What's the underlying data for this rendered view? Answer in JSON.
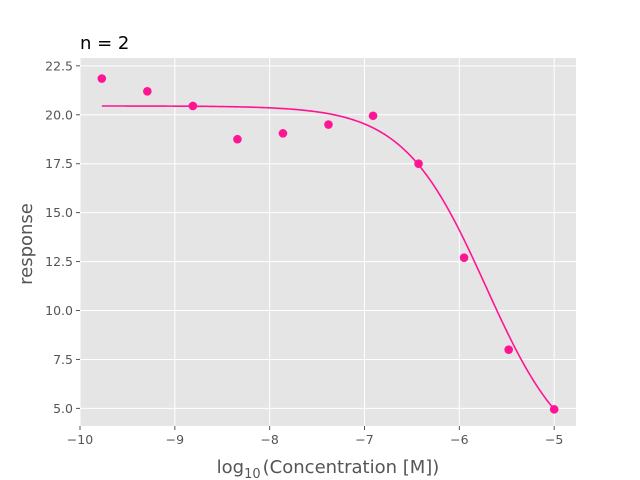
{
  "chart_data": {
    "type": "scatter",
    "title": "n = 2",
    "xlabel_base": "log",
    "xlabel_sub": "10",
    "xlabel_rest": "(Concentration [M])",
    "ylabel": "response",
    "xlim": [
      -10,
      -4.77
    ],
    "ylim": [
      4.1,
      22.9
    ],
    "xticks": [
      -10,
      -9,
      -8,
      -7,
      -6,
      -5
    ],
    "xtick_labels": [
      "−10",
      "−9",
      "−8",
      "−7",
      "−6",
      "−5"
    ],
    "yticks": [
      5.0,
      7.5,
      10.0,
      12.5,
      15.0,
      17.5,
      20.0,
      22.5
    ],
    "ytick_labels": [
      "5.0",
      "7.5",
      "10.0",
      "12.5",
      "15.0",
      "17.5",
      "20.0",
      "22.5"
    ],
    "grid": true,
    "background": "#e5e5e5",
    "grid_color": "#ffffff",
    "point_color": "#ff1493",
    "series": [
      {
        "kind": "points",
        "x": [
          -9.77,
          -9.29,
          -8.81,
          -8.34,
          -7.86,
          -7.38,
          -6.91,
          -6.43,
          -5.95,
          -5.48,
          -5.0
        ],
        "y": [
          21.85,
          21.2,
          20.45,
          18.75,
          19.05,
          19.5,
          19.95,
          17.5,
          12.7,
          8.0,
          4.95
        ]
      },
      {
        "kind": "fit",
        "model": "4PL",
        "top": 20.45,
        "bottom": 2.0,
        "log_ec50": -5.72,
        "hill": 1.0,
        "x_range": [
          -9.77,
          -5.0
        ]
      }
    ]
  }
}
